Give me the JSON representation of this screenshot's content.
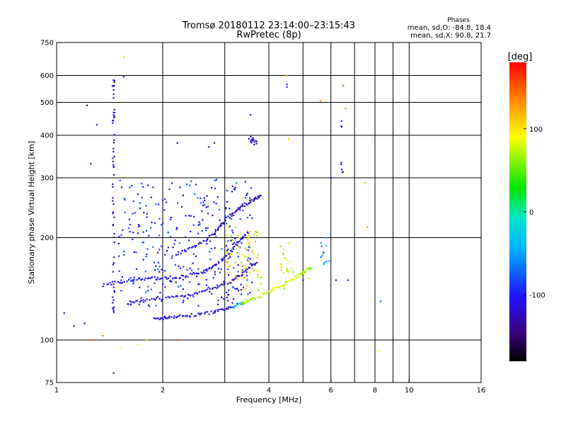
{
  "chart_data": {
    "type": "scatter",
    "title": "Tromsø 20180112 23:14:00–23:15:43",
    "subtitle": "RwPretec (8p)",
    "xlabel": "Frequency [MHz]",
    "ylabel": "Stationary phase Virtual Height [km]",
    "xscale": "log",
    "yscale": "log",
    "xlim": [
      1,
      16
    ],
    "ylim": [
      75,
      750
    ],
    "grid": true,
    "x_ticks": [
      1,
      2,
      4,
      6,
      8,
      10,
      16
    ],
    "x_tick_labels": [
      "1",
      "2",
      "4",
      "6",
      "8",
      "10",
      "16"
    ],
    "x_grid": [
      2,
      3,
      4,
      5,
      6,
      7,
      8,
      9,
      10
    ],
    "y_ticks": [
      75,
      100,
      200,
      300,
      400,
      500,
      600,
      750
    ],
    "y_tick_labels": [
      "75",
      "100",
      "200",
      "300",
      "400",
      "500",
      "600",
      "750"
    ],
    "y_grid": [
      100,
      200,
      300,
      400,
      500,
      600
    ],
    "colorbar": {
      "label": "[deg]",
      "range": [
        -180,
        180
      ],
      "ticks": [
        100,
        0,
        -100
      ],
      "tick_labels": [
        "100",
        "0",
        "-100"
      ]
    },
    "stats": {
      "header": "Phases",
      "o_line": "mean, sd,O: -84.8, 18.4",
      "x_line": "mean, sd,X:  90.8, 21.7"
    },
    "series": [
      {
        "shape": "trace",
        "points": [
          [
            1.9,
            115,
            -110
          ],
          [
            2.1,
            117,
            -112
          ],
          [
            2.4,
            118,
            -108
          ],
          [
            2.8,
            121,
            -105
          ],
          [
            3.1,
            124,
            -112
          ],
          [
            3.4,
            129,
            60
          ],
          [
            3.8,
            135,
            75
          ],
          [
            4.2,
            142,
            80
          ],
          [
            4.6,
            150,
            85
          ],
          [
            5.0,
            158,
            70
          ],
          [
            5.3,
            164,
            60
          ]
        ]
      },
      {
        "shape": "trace",
        "points": [
          [
            1.6,
            128,
            -112
          ],
          [
            1.9,
            132,
            -108
          ],
          [
            2.3,
            135,
            -110
          ],
          [
            2.7,
            140,
            -118
          ],
          [
            3.1,
            148,
            -125
          ],
          [
            3.4,
            158,
            -130
          ],
          [
            3.7,
            170,
            -128
          ]
        ]
      },
      {
        "shape": "trace",
        "points": [
          [
            1.35,
            145,
            -100
          ],
          [
            1.6,
            150,
            -105
          ],
          [
            1.9,
            152,
            -100
          ],
          [
            2.2,
            153,
            -108
          ],
          [
            2.6,
            158,
            -112
          ],
          [
            2.9,
            170,
            -118
          ],
          [
            3.2,
            188,
            -110
          ],
          [
            3.5,
            210,
            -100
          ]
        ]
      },
      {
        "shape": "trace",
        "points": [
          [
            2.2,
            180,
            -100
          ],
          [
            2.5,
            190,
            -105
          ],
          [
            2.8,
            205,
            -120
          ],
          [
            3.0,
            225,
            -130
          ],
          [
            3.3,
            245,
            -128
          ],
          [
            3.6,
            258,
            -125
          ],
          [
            3.8,
            265,
            -122
          ]
        ]
      },
      {
        "shape": "cloud",
        "x_range": [
          1.5,
          3.6
        ],
        "y_range": [
          125,
          300
        ],
        "count": 340,
        "phase_range": [
          -125,
          -70
        ]
      },
      {
        "shape": "cloud",
        "x_range": [
          3.0,
          3.8
        ],
        "y_range": [
          140,
          215
        ],
        "count": 75,
        "phase_range": [
          50,
          125
        ]
      },
      {
        "shape": "cloud",
        "x_range": [
          4.3,
          4.7
        ],
        "y_range": [
          140,
          195
        ],
        "count": 22,
        "phase_range": [
          55,
          110
        ]
      },
      {
        "shape": "cloud",
        "x_range": [
          5.6,
          6.0
        ],
        "y_range": [
          165,
          205
        ],
        "count": 14,
        "phase_range": [
          -70,
          -20
        ]
      },
      {
        "shape": "column",
        "x_range": [
          1.44,
          1.46
        ],
        "y_range": [
          120,
          620
        ],
        "count": 60,
        "phase_range": [
          -130,
          -100
        ]
      },
      {
        "shape": "column",
        "x_range": [
          3.5,
          3.7
        ],
        "y_range": [
          370,
          400
        ],
        "count": 14,
        "phase_range": [
          -130,
          -110
        ]
      },
      {
        "shape": "column",
        "x_range": [
          6.4,
          6.5
        ],
        "y_range": [
          310,
          470
        ],
        "count": 8,
        "phase_range": [
          -115,
          -95
        ]
      },
      {
        "shape": "points",
        "points": [
          [
            1.05,
            120,
            -100
          ],
          [
            1.12,
            110,
            -110
          ],
          [
            1.2,
            112,
            -115
          ],
          [
            1.25,
            330,
            -115
          ],
          [
            1.22,
            490,
            -125
          ],
          [
            1.3,
            430,
            -95
          ],
          [
            1.35,
            103,
            150
          ],
          [
            1.25,
            100,
            150
          ],
          [
            1.45,
            80,
            -130
          ],
          [
            1.52,
            95,
            95
          ],
          [
            1.55,
            595,
            -120
          ],
          [
            1.55,
            680,
            110
          ],
          [
            1.7,
            97,
            95
          ],
          [
            1.8,
            100,
            80
          ],
          [
            2.2,
            100,
            160
          ],
          [
            2.2,
            380,
            -120
          ],
          [
            2.7,
            370,
            -130
          ],
          [
            2.8,
            380,
            -115
          ],
          [
            3.55,
            460,
            -120
          ],
          [
            4.5,
            600,
            115
          ],
          [
            4.5,
            565,
            -90
          ],
          [
            4.5,
            555,
            -95
          ],
          [
            4.55,
            390,
            110
          ],
          [
            5.6,
            505,
            130
          ],
          [
            6.5,
            560,
            160
          ],
          [
            6.6,
            480,
            125
          ],
          [
            6.0,
            300,
            -115
          ],
          [
            7.5,
            290,
            110
          ],
          [
            7.6,
            215,
            125
          ],
          [
            8.2,
            93,
            95
          ],
          [
            8.3,
            130,
            -70
          ],
          [
            6.2,
            150,
            -110
          ],
          [
            6.7,
            150,
            -115
          ],
          [
            5.2,
            152,
            75
          ],
          [
            5.0,
            150,
            -110
          ]
        ]
      }
    ]
  }
}
